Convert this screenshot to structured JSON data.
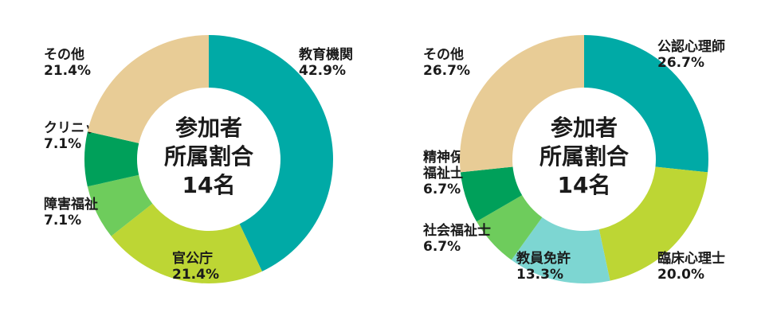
{
  "chart_data": [
    {
      "type": "donut",
      "center": [
        "参加者",
        "所属割合",
        "14名"
      ],
      "slices": [
        {
          "label": "教育機関",
          "value": 42.9,
          "display": "42.9%",
          "color": "#00aaa6"
        },
        {
          "label": "官公庁",
          "value": 21.4,
          "display": "21.4%",
          "color": "#bdd634"
        },
        {
          "label": "障害福祉",
          "value": 7.1,
          "display": "7.1%",
          "color": "#6ecc5c"
        },
        {
          "label": "クリニック",
          "value": 7.1,
          "display": "7.1%",
          "color": "#00a05a"
        },
        {
          "label": "その他",
          "value": 21.4,
          "display": "21.4%",
          "color": "#e8cc96"
        }
      ]
    },
    {
      "type": "donut",
      "center": [
        "参加者",
        "所属割合",
        "14名"
      ],
      "slices": [
        {
          "label": "公認心理師",
          "value": 26.7,
          "display": "26.7%",
          "color": "#00aaa6"
        },
        {
          "label": "臨床心理士",
          "value": 20.0,
          "display": "20.0%",
          "color": "#bdd634"
        },
        {
          "label": "教員免許",
          "value": 13.3,
          "display": "13.3%",
          "color": "#7dd6d2"
        },
        {
          "label": "社会福祉士",
          "value": 6.7,
          "display": "6.7%",
          "color": "#6ecc5c"
        },
        {
          "label": "精神保健\n福祉士",
          "value": 6.7,
          "display": "6.7%",
          "color": "#00a05a"
        },
        {
          "label": "その他",
          "value": 26.7,
          "display": "26.7%",
          "color": "#e8cc96"
        }
      ]
    }
  ]
}
